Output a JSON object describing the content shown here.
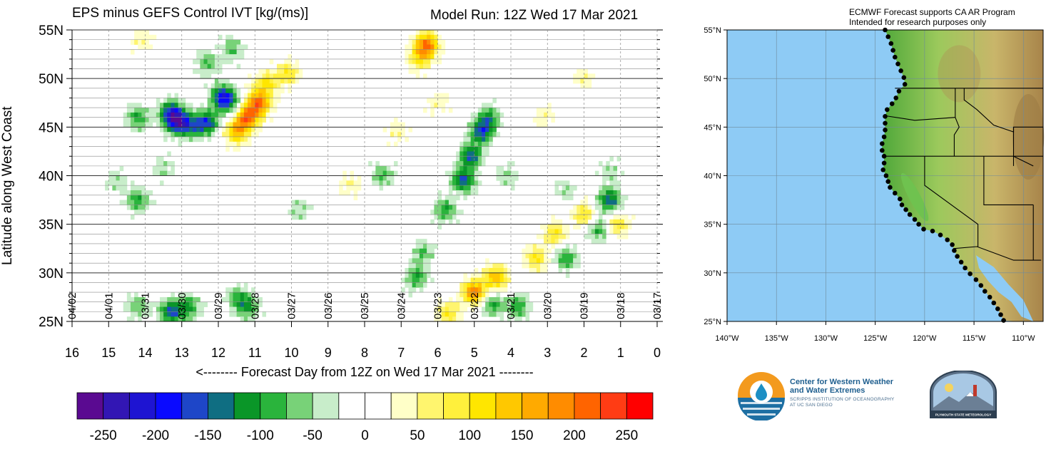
{
  "header": {
    "title_left": "EPS minus GEFS Control IVT [kg/(ms)]",
    "title_right": "Model Run: 12Z Wed 17 Mar 2021"
  },
  "map_note": {
    "line1": "ECMWF Forecast supports CA AR Program",
    "line2": "Intended for research purposes only"
  },
  "logos": {
    "cw3e_line1": "Center for Western Weather",
    "cw3e_line2": "and Water Extremes",
    "cw3e_sub1": "SCRIPPS INSTITUTION OF OCEANOGRAPHY",
    "cw3e_sub2": "AT UC SAN DIEGO",
    "plymouth": "PLYMOUTH STATE METEOROLOGY"
  },
  "chart_data": [
    {
      "type": "heatmap",
      "title": "EPS minus GEFS Control IVT [kg/(ms)]",
      "xlabel": "<-------- Forecast Day from 12Z on Wed 17 Mar 2021 --------",
      "ylabel": "Latitude along West Coast",
      "x_ticks": [
        "16",
        "15",
        "14",
        "13",
        "12",
        "11",
        "10",
        "9",
        "8",
        "7",
        "6",
        "5",
        "4",
        "3",
        "2",
        "1",
        "0"
      ],
      "x_range": [
        16,
        0
      ],
      "date_labels": [
        "04/02",
        "04/01",
        "03/31",
        "03/30",
        "03/29",
        "03/28",
        "03/27",
        "03/26",
        "03/25",
        "03/24",
        "03/23",
        "03/22",
        "03/21",
        "03/20",
        "03/19",
        "03/18",
        "03/17"
      ],
      "y_ticks": [
        "25N",
        "30N",
        "35N",
        "40N",
        "45N",
        "50N",
        "55N"
      ],
      "y_range": [
        25,
        55
      ],
      "grid": true,
      "colorbar": {
        "colors": [
          "#5a0a91",
          "#3216b4",
          "#1e14d2",
          "#0a0aff",
          "#1e46c8",
          "#0f6e82",
          "#0a9628",
          "#2ab43c",
          "#78d278",
          "#c8edca",
          "#ffffff",
          "#ffffff",
          "#ffffc8",
          "#fff56e",
          "#fff03c",
          "#ffe600",
          "#ffc800",
          "#ffaa00",
          "#ff8c00",
          "#ff6400",
          "#ff3c14",
          "#ff0000"
        ],
        "tick_labels": [
          "-250",
          "-200",
          "-150",
          "-100",
          "-50",
          "0",
          "50",
          "100",
          "150",
          "200",
          "250"
        ]
      },
      "features": [
        {
          "day": 13.1,
          "lat": 45.5,
          "value": -200
        },
        {
          "day": 13.3,
          "lat": 46.5,
          "value": -150
        },
        {
          "day": 14.2,
          "lat": 46.0,
          "value": -100
        },
        {
          "day": 12.7,
          "lat": 45.0,
          "value": -100
        },
        {
          "day": 11.7,
          "lat": 47.5,
          "value": -100
        },
        {
          "day": 11.6,
          "lat": 53.0,
          "value": -75
        },
        {
          "day": 12.3,
          "lat": 51.5,
          "value": -75
        },
        {
          "day": 12.3,
          "lat": 45.5,
          "value": -150
        },
        {
          "day": 11.9,
          "lat": 48.2,
          "value": -150
        },
        {
          "day": 14.8,
          "lat": 39.5,
          "value": -50
        },
        {
          "day": 14.2,
          "lat": 37.5,
          "value": -100
        },
        {
          "day": 13.5,
          "lat": 40.8,
          "value": -50
        },
        {
          "day": 10.7,
          "lat": 49.5,
          "value": 100
        },
        {
          "day": 10.1,
          "lat": 50.5,
          "value": 100
        },
        {
          "day": 11.2,
          "lat": 46.0,
          "value": 200
        },
        {
          "day": 10.9,
          "lat": 47.5,
          "value": 200
        },
        {
          "day": 11.5,
          "lat": 44.5,
          "value": 150
        },
        {
          "day": 14.1,
          "lat": 54.0,
          "value": 50
        },
        {
          "day": 5.3,
          "lat": 39.5,
          "value": -150
        },
        {
          "day": 5.1,
          "lat": 42.0,
          "value": -150
        },
        {
          "day": 4.8,
          "lat": 44.5,
          "value": -150
        },
        {
          "day": 5.8,
          "lat": 36.5,
          "value": -100
        },
        {
          "day": 4.6,
          "lat": 46.0,
          "value": -100
        },
        {
          "day": 4.1,
          "lat": 40.0,
          "value": -50
        },
        {
          "day": 4.5,
          "lat": 26.8,
          "value": -100
        },
        {
          "day": 3.8,
          "lat": 26.5,
          "value": -100
        },
        {
          "day": 5.0,
          "lat": 28.0,
          "value": 200
        },
        {
          "day": 4.4,
          "lat": 29.5,
          "value": 150
        },
        {
          "day": 3.3,
          "lat": 31.5,
          "value": 100
        },
        {
          "day": 2.8,
          "lat": 34.0,
          "value": 100
        },
        {
          "day": 2.0,
          "lat": 36.0,
          "value": 100
        },
        {
          "day": 5.7,
          "lat": 25.8,
          "value": 100
        },
        {
          "day": 2.5,
          "lat": 31.5,
          "value": -100
        },
        {
          "day": 1.6,
          "lat": 34.5,
          "value": -100
        },
        {
          "day": 1.3,
          "lat": 37.5,
          "value": -150
        },
        {
          "day": 1.3,
          "lat": 40.5,
          "value": -50
        },
        {
          "day": 1.1,
          "lat": 35.0,
          "value": 100
        },
        {
          "day": 6.3,
          "lat": 53.5,
          "value": 200
        },
        {
          "day": 6.5,
          "lat": 52.0,
          "value": 100
        },
        {
          "day": 6.6,
          "lat": 29.5,
          "value": -100
        },
        {
          "day": 6.4,
          "lat": 32.0,
          "value": -75
        },
        {
          "day": 12.8,
          "lat": 26.5,
          "value": -100
        },
        {
          "day": 11.2,
          "lat": 26.5,
          "value": -100
        },
        {
          "day": 13.3,
          "lat": 26.0,
          "value": -150
        },
        {
          "day": 14.2,
          "lat": 26.5,
          "value": -75
        },
        {
          "day": 11.5,
          "lat": 27.5,
          "value": -75
        },
        {
          "day": 8.4,
          "lat": 39.0,
          "value": 50
        },
        {
          "day": 7.5,
          "lat": 40.0,
          "value": -75
        },
        {
          "day": 6.0,
          "lat": 47.5,
          "value": 50
        },
        {
          "day": 2.0,
          "lat": 50.0,
          "value": 50
        },
        {
          "day": 3.1,
          "lat": 46.0,
          "value": 50
        },
        {
          "day": 2.5,
          "lat": 38.5,
          "value": -50
        },
        {
          "day": 9.8,
          "lat": 36.5,
          "value": -50
        },
        {
          "day": 7.1,
          "lat": 44.5,
          "value": 50
        }
      ]
    },
    {
      "type": "map",
      "lat_ticks": [
        "25°N",
        "30°N",
        "35°N",
        "40°N",
        "45°N",
        "50°N",
        "55°N"
      ],
      "lat_range": [
        25,
        55
      ],
      "lon_ticks": [
        "140°W",
        "135°W",
        "130°W",
        "125°W",
        "120°W",
        "115°W",
        "110°W"
      ],
      "lon_range": [
        -140,
        -108
      ],
      "coast_points": [
        [
          -124.0,
          55.0
        ],
        [
          -123.7,
          54.3
        ],
        [
          -123.4,
          53.6
        ],
        [
          -123.2,
          52.9
        ],
        [
          -123.0,
          52.2
        ],
        [
          -122.7,
          51.5
        ],
        [
          -122.4,
          50.8
        ],
        [
          -122.1,
          50.1
        ],
        [
          -122.0,
          49.4
        ],
        [
          -122.6,
          48.7
        ],
        [
          -122.9,
          48.0
        ],
        [
          -123.3,
          47.4
        ],
        [
          -123.8,
          46.8
        ],
        [
          -124.0,
          46.1
        ],
        [
          -124.0,
          45.4
        ],
        [
          -124.0,
          44.7
        ],
        [
          -124.1,
          44.0
        ],
        [
          -124.3,
          43.3
        ],
        [
          -124.3,
          42.6
        ],
        [
          -124.1,
          42.0
        ],
        [
          -124.1,
          41.3
        ],
        [
          -124.2,
          40.6
        ],
        [
          -123.9,
          40.0
        ],
        [
          -123.7,
          39.4
        ],
        [
          -123.5,
          38.8
        ],
        [
          -123.0,
          38.2
        ],
        [
          -122.5,
          37.6
        ],
        [
          -122.3,
          37.0
        ],
        [
          -121.9,
          36.5
        ],
        [
          -121.5,
          36.0
        ],
        [
          -121.0,
          35.5
        ],
        [
          -120.6,
          35.0
        ],
        [
          -120.1,
          34.5
        ],
        [
          -119.2,
          34.3
        ],
        [
          -118.4,
          33.9
        ],
        [
          -117.7,
          33.4
        ],
        [
          -117.2,
          32.9
        ],
        [
          -117.0,
          32.3
        ],
        [
          -116.7,
          31.7
        ],
        [
          -116.3,
          31.1
        ],
        [
          -115.9,
          30.5
        ],
        [
          -115.4,
          29.9
        ],
        [
          -114.8,
          29.3
        ],
        [
          -114.3,
          28.7
        ],
        [
          -113.9,
          28.1
        ],
        [
          -113.4,
          27.5
        ],
        [
          -113.0,
          26.9
        ],
        [
          -112.6,
          26.3
        ],
        [
          -112.3,
          25.7
        ],
        [
          -112.0,
          25.1
        ]
      ]
    }
  ]
}
